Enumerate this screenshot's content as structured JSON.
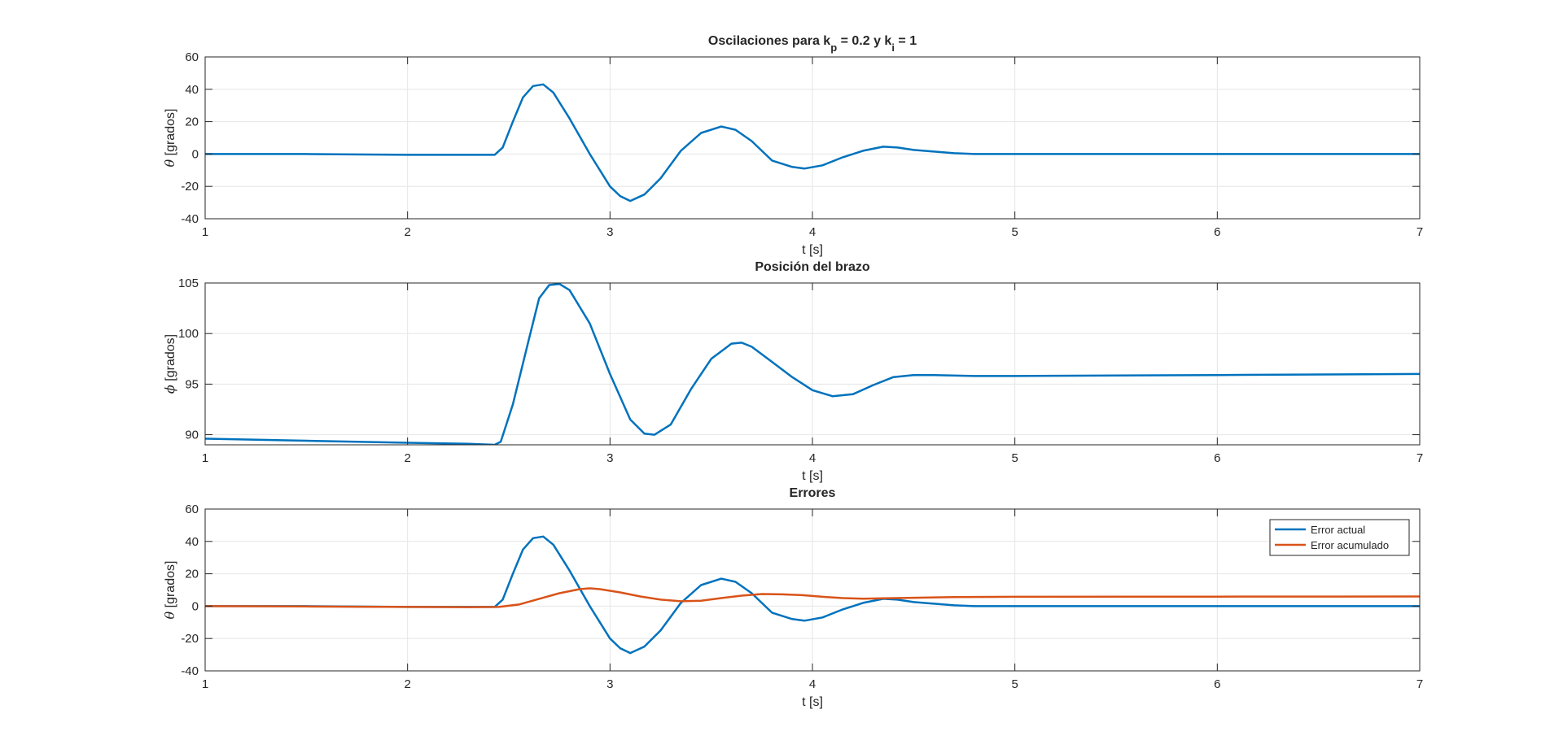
{
  "chart_data": [
    {
      "type": "line",
      "title": {
        "main": "Oscilaciones para k",
        "sub1": "p",
        "mid": " = 0.2 y k",
        "sub2": "i",
        "end": " = 1"
      },
      "xlabel": "t [s]",
      "ylabel": {
        "symbol": "θ",
        "text": " [grados]"
      },
      "xlim": [
        1,
        7
      ],
      "ylim": [
        -40,
        60
      ],
      "xticks": [
        "1",
        "2",
        "3",
        "4",
        "5",
        "6",
        "7"
      ],
      "yticks": [
        "-40",
        "-20",
        "0",
        "20",
        "40",
        "60"
      ],
      "grid": true,
      "series": [
        {
          "color": "#0072BD",
          "x": [
            1,
            1.5,
            2,
            2.3,
            2.43,
            2.47,
            2.52,
            2.57,
            2.62,
            2.67,
            2.72,
            2.8,
            2.9,
            3.0,
            3.05,
            3.1,
            3.17,
            3.25,
            3.35,
            3.45,
            3.55,
            3.62,
            3.7,
            3.8,
            3.9,
            3.96,
            4.05,
            4.15,
            4.25,
            4.35,
            4.42,
            4.5,
            4.6,
            4.7,
            4.8,
            5,
            6,
            7
          ],
          "y": [
            0,
            0,
            -0.5,
            -0.5,
            -0.5,
            4,
            20,
            35,
            42,
            43,
            38,
            22,
            0,
            -20,
            -26,
            -29,
            -25,
            -15,
            2,
            13,
            17,
            15,
            8,
            -4,
            -8,
            -9,
            -7,
            -2,
            2,
            4.5,
            4,
            2.5,
            1.5,
            0.5,
            0,
            0,
            0,
            0
          ]
        }
      ]
    },
    {
      "type": "line",
      "title": "Posición del brazo",
      "xlabel": "t [s]",
      "ylabel": {
        "symbol": "ϕ",
        "text": " [grados]"
      },
      "xlim": [
        1,
        7
      ],
      "ylim": [
        89,
        105
      ],
      "xticks": [
        "1",
        "2",
        "3",
        "4",
        "5",
        "6",
        "7"
      ],
      "yticks": [
        "90",
        "95",
        "100",
        "105"
      ],
      "ytick_values": [
        90,
        95,
        100,
        105
      ],
      "grid": true,
      "series": [
        {
          "color": "#0072BD",
          "x": [
            1,
            1.5,
            2,
            2.3,
            2.43,
            2.46,
            2.52,
            2.6,
            2.65,
            2.7,
            2.75,
            2.8,
            2.9,
            3.0,
            3.1,
            3.17,
            3.22,
            3.3,
            3.4,
            3.5,
            3.6,
            3.65,
            3.7,
            3.8,
            3.9,
            4.0,
            4.1,
            4.2,
            4.3,
            4.4,
            4.5,
            4.6,
            4.8,
            5,
            6,
            7
          ],
          "y": [
            89.6,
            89.4,
            89.2,
            89.1,
            89.0,
            89.3,
            93,
            99.5,
            103.5,
            104.8,
            104.9,
            104.3,
            101,
            96,
            91.5,
            90.1,
            90.0,
            91,
            94.5,
            97.5,
            99,
            99.1,
            98.7,
            97.2,
            95.7,
            94.4,
            93.8,
            94,
            94.9,
            95.7,
            95.9,
            95.9,
            95.8,
            95.8,
            95.9,
            96.0
          ]
        }
      ]
    },
    {
      "type": "line",
      "title": "Errores",
      "xlabel": "t [s]",
      "ylabel": {
        "symbol": "θ",
        "text": " [grados]"
      },
      "xlim": [
        1,
        7
      ],
      "ylim": [
        -40,
        60
      ],
      "xticks": [
        "1",
        "2",
        "3",
        "4",
        "5",
        "6",
        "7"
      ],
      "yticks": [
        "-40",
        "-20",
        "0",
        "20",
        "40",
        "60"
      ],
      "grid": true,
      "legend": "top-right",
      "series": [
        {
          "name": "Error actual",
          "color": "#0072BD",
          "x": [
            1,
            1.5,
            2,
            2.3,
            2.43,
            2.47,
            2.52,
            2.57,
            2.62,
            2.67,
            2.72,
            2.8,
            2.9,
            3.0,
            3.05,
            3.1,
            3.17,
            3.25,
            3.35,
            3.45,
            3.55,
            3.62,
            3.7,
            3.8,
            3.9,
            3.96,
            4.05,
            4.15,
            4.25,
            4.35,
            4.42,
            4.5,
            4.6,
            4.7,
            4.8,
            5,
            6,
            7
          ],
          "y": [
            0,
            0,
            -0.5,
            -0.5,
            -0.5,
            4,
            20,
            35,
            42,
            43,
            38,
            22,
            0,
            -20,
            -26,
            -29,
            -25,
            -15,
            2,
            13,
            17,
            15,
            8,
            -4,
            -8,
            -9,
            -7,
            -2,
            2,
            4.5,
            4,
            2.5,
            1.5,
            0.5,
            0,
            0,
            0,
            0
          ]
        },
        {
          "name": "Error acumulado",
          "color": "#D95319",
          "x": [
            1,
            1.5,
            2,
            2.3,
            2.45,
            2.55,
            2.65,
            2.75,
            2.85,
            2.9,
            2.95,
            3.05,
            3.15,
            3.25,
            3.35,
            3.45,
            3.55,
            3.65,
            3.75,
            3.85,
            3.95,
            4.05,
            4.15,
            4.25,
            4.35,
            4.5,
            4.7,
            5,
            6,
            7
          ],
          "y": [
            0,
            -0.2,
            -0.5,
            -0.6,
            -0.5,
            1,
            4.5,
            8,
            10.5,
            11,
            10.5,
            8.5,
            6,
            4,
            3,
            3.3,
            5,
            6.5,
            7.5,
            7.3,
            6.8,
            5.8,
            5,
            4.6,
            4.8,
            5.2,
            5.6,
            5.8,
            5.9,
            6.0
          ]
        }
      ]
    }
  ]
}
